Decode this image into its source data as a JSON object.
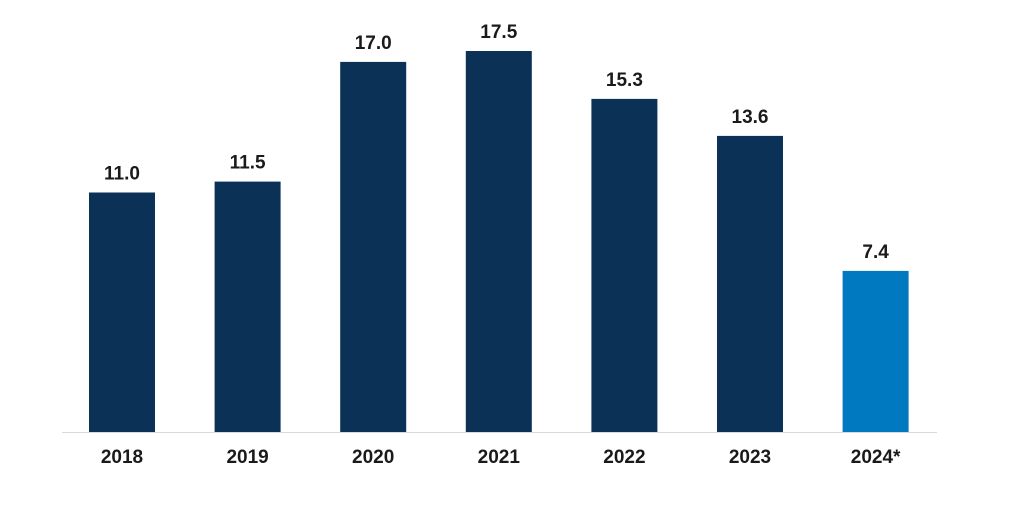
{
  "chart_data": {
    "type": "bar",
    "categories": [
      "2018",
      "2019",
      "2020",
      "2021",
      "2022",
      "2023",
      "2024*"
    ],
    "values": [
      11.0,
      11.5,
      17.0,
      17.5,
      15.3,
      13.6,
      7.4
    ],
    "value_labels": [
      "11.0",
      "11.5",
      "17.0",
      "17.5",
      "15.3",
      "13.6",
      "7.4"
    ],
    "colors": [
      "#0b3157",
      "#0b3157",
      "#0b3157",
      "#0b3157",
      "#0b3157",
      "#0b3157",
      "#0079c1"
    ],
    "ylim": [
      0,
      17.5
    ],
    "grid": false,
    "axis_color": "#d9d9d9"
  }
}
